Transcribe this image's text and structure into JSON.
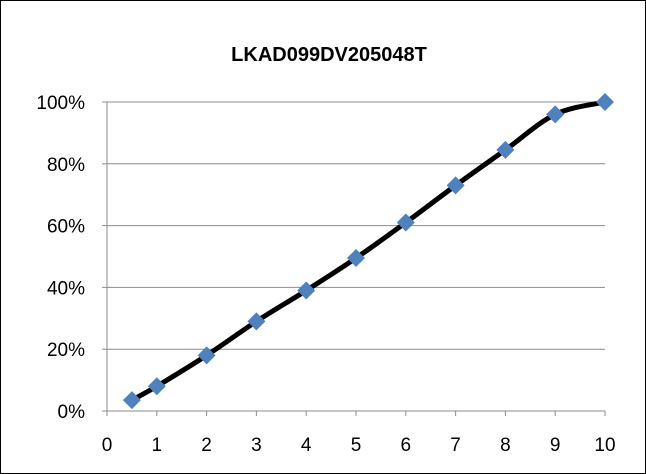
{
  "chart_data": {
    "type": "line",
    "title": "LKAD099DV205048T",
    "xlabel": "",
    "ylabel": "",
    "xlim": [
      0,
      10
    ],
    "ylim": [
      0,
      1
    ],
    "x_ticks": [
      "0",
      "1",
      "2",
      "3",
      "4",
      "5",
      "6",
      "7",
      "8",
      "9",
      "10"
    ],
    "y_ticks": [
      "0%",
      "20%",
      "40%",
      "60%",
      "80%",
      "100%"
    ],
    "grid": "horizontal",
    "legend": "none",
    "series": [
      {
        "x": [
          0.5,
          1,
          2,
          3,
          4,
          5,
          6,
          7,
          8,
          9,
          10
        ],
        "y": [
          0.035,
          0.08,
          0.18,
          0.29,
          0.39,
          0.495,
          0.61,
          0.73,
          0.845,
          0.96,
          1.0
        ],
        "line_color": "#000000",
        "marker_color": "#4F81BD",
        "marker": "diamond"
      }
    ]
  }
}
